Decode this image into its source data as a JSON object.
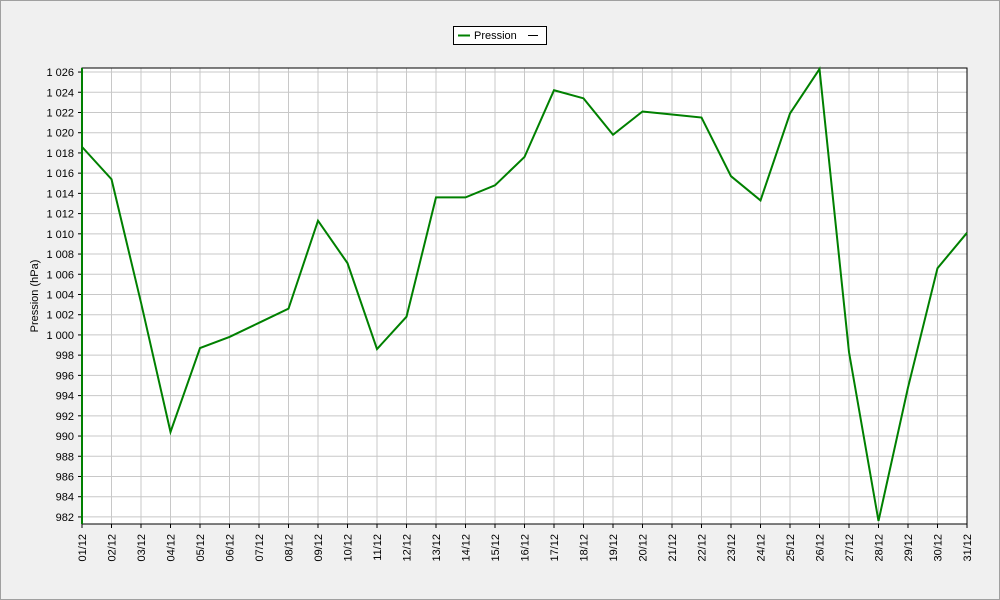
{
  "chart_data": {
    "type": "line",
    "y_label": "Pression (hPa)",
    "categories": [
      "01/12",
      "02/12",
      "03/12",
      "04/12",
      "05/12",
      "06/12",
      "07/12",
      "08/12",
      "09/12",
      "10/12",
      "11/12",
      "12/12",
      "13/12",
      "14/12",
      "15/12",
      "16/12",
      "17/12",
      "18/12",
      "19/12",
      "20/12",
      "21/12",
      "22/12",
      "23/12",
      "24/12",
      "25/12",
      "26/12",
      "27/12",
      "28/12",
      "29/12",
      "30/12",
      "31/12"
    ],
    "series": [
      {
        "name": "Pression",
        "color": "#008000",
        "values": [
          1018.6,
          1015.4,
          1003.2,
          990.4,
          998.7,
          999.8,
          1001.2,
          1002.6,
          1011.3,
          1007.1,
          998.6,
          1001.8,
          1013.6,
          1013.6,
          1014.8,
          1017.6,
          1024.2,
          1023.4,
          1019.8,
          1022.1,
          1021.8,
          1021.5,
          1015.7,
          1013.3,
          1021.9,
          1026.3,
          998.3,
          981.6,
          994.8,
          1006.6,
          1010.1
        ]
      }
    ],
    "ylim": [
      981.3,
      1026.4
    ],
    "yticks": [
      982,
      984,
      986,
      988,
      990,
      992,
      994,
      996,
      998,
      {
        "value": 1000,
        "label": "1 000"
      },
      {
        "value": 1002,
        "label": "1 002"
      },
      {
        "value": 1004,
        "label": "1 004"
      },
      {
        "value": 1006,
        "label": "1 006"
      },
      {
        "value": 1008,
        "label": "1 008"
      },
      {
        "value": 1010,
        "label": "1 010"
      },
      {
        "value": 1012,
        "label": "1 012"
      },
      {
        "value": 1014,
        "label": "1 014"
      },
      {
        "value": 1016,
        "label": "1 016"
      },
      {
        "value": 1018,
        "label": "1 018"
      },
      {
        "value": 1020,
        "label": "1 020"
      },
      {
        "value": 1022,
        "label": "1 022"
      },
      {
        "value": 1024,
        "label": "1 024"
      },
      {
        "value": 1026,
        "label": "1 026"
      }
    ],
    "grid": true
  }
}
